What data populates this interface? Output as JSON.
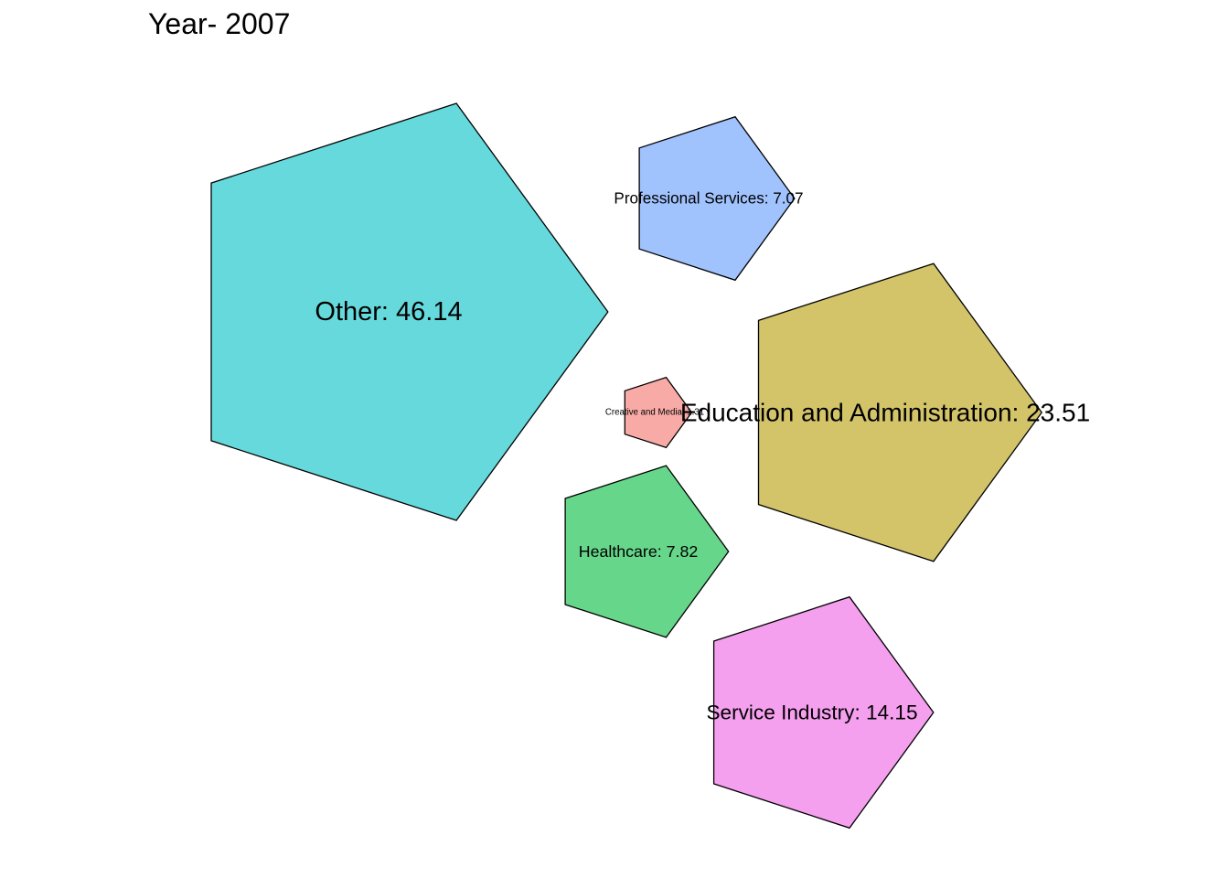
{
  "chart_data": {
    "type": "bubble",
    "shape": "pentagon",
    "title": "Year- 2007",
    "series": [
      {
        "category": "Other",
        "value": 46.14,
        "label": "Other: 46.14",
        "color": "#66d9dc"
      },
      {
        "category": "Education and Administration",
        "value": 23.51,
        "label": "Education and Administration: 23.51",
        "color": "#d3c46a"
      },
      {
        "category": "Service Industry",
        "value": 14.15,
        "label": "Service Industry: 14.15",
        "color": "#f5a0ee"
      },
      {
        "category": "Healthcare",
        "value": 7.82,
        "label": "Healthcare: 7.82",
        "color": "#66d78a"
      },
      {
        "category": "Professional Services",
        "value": 7.07,
        "label": "Professional Services: 7.07",
        "color": "#a0c2fd"
      },
      {
        "category": "Creative and Media",
        "value": 1.31,
        "label": "Creative and Media: 1.31",
        "color": "#f8aba6"
      }
    ],
    "legend": "none",
    "grid": false
  }
}
